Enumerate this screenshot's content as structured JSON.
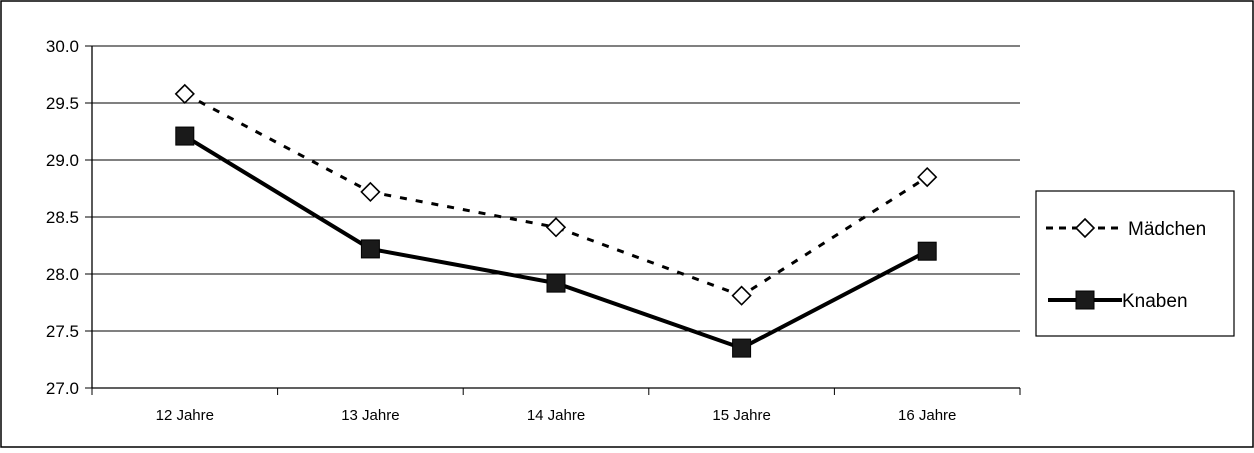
{
  "chart_data": {
    "type": "line",
    "categories": [
      "12 Jahre",
      "13 Jahre",
      "14 Jahre",
      "15 Jahre",
      "16 Jahre"
    ],
    "y_ticks": [
      "30.0",
      "29.5",
      "29.0",
      "28.5",
      "28.0",
      "27.5",
      "27.0"
    ],
    "ylim": [
      27.0,
      30.0
    ],
    "grid": true,
    "legend_position": "right",
    "series": [
      {
        "name": "Mädchen",
        "values": [
          29.58,
          28.72,
          28.41,
          27.81,
          28.85
        ],
        "line_style": "dashed",
        "marker": "open-diamond",
        "color": "#000000"
      },
      {
        "name": "Knaben",
        "values": [
          29.21,
          28.22,
          27.92,
          27.35,
          28.2
        ],
        "line_style": "solid",
        "marker": "filled-square",
        "color": "#000000"
      }
    ]
  }
}
